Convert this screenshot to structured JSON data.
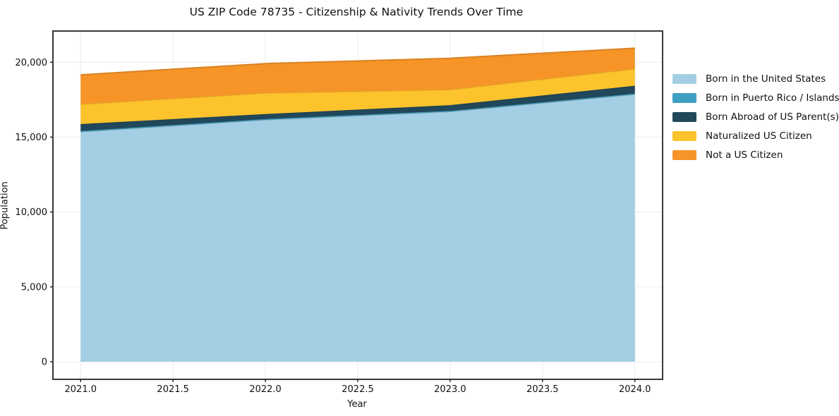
{
  "chart_data": {
    "type": "area",
    "stacked": true,
    "title": "US ZIP Code 78735 - Citizenship & Nativity Trends Over Time",
    "xlabel": "Year",
    "ylabel": "Population",
    "x": [
      2021,
      2022,
      2023,
      2024
    ],
    "series": [
      {
        "name": "Born in the United States",
        "color": "#a4cee3",
        "values": [
          15350,
          16150,
          16700,
          17850
        ]
      },
      {
        "name": "Born in Puerto Rico / Islands",
        "color": "#3fa0c1",
        "values": [
          60,
          60,
          55,
          60
        ]
      },
      {
        "name": "Born Abroad of US Parent(s)",
        "color": "#21485a",
        "values": [
          460,
          330,
          380,
          520
        ]
      },
      {
        "name": "Naturalized US Citizen",
        "color": "#fcc32d",
        "values": [
          1330,
          1410,
          1035,
          1130
        ]
      },
      {
        "name": "Not a US Citizen",
        "color": "#f79428",
        "values": [
          1960,
          1960,
          2095,
          1380
        ]
      }
    ],
    "totals": [
      19160,
      19910,
      20265,
      20940
    ],
    "xticks": [
      2021.0,
      2021.5,
      2022.0,
      2022.5,
      2023.0,
      2023.5,
      2024.0
    ],
    "yticks": [
      0,
      5000,
      10000,
      15000,
      20000
    ],
    "xlim": [
      2020.85,
      2024.15
    ],
    "ylim": [
      -1176,
      22085
    ],
    "grid": true,
    "grid_color": "#ececec",
    "spine_color": "#222222",
    "legend_position": "right-outside",
    "background": "#ffffff"
  }
}
